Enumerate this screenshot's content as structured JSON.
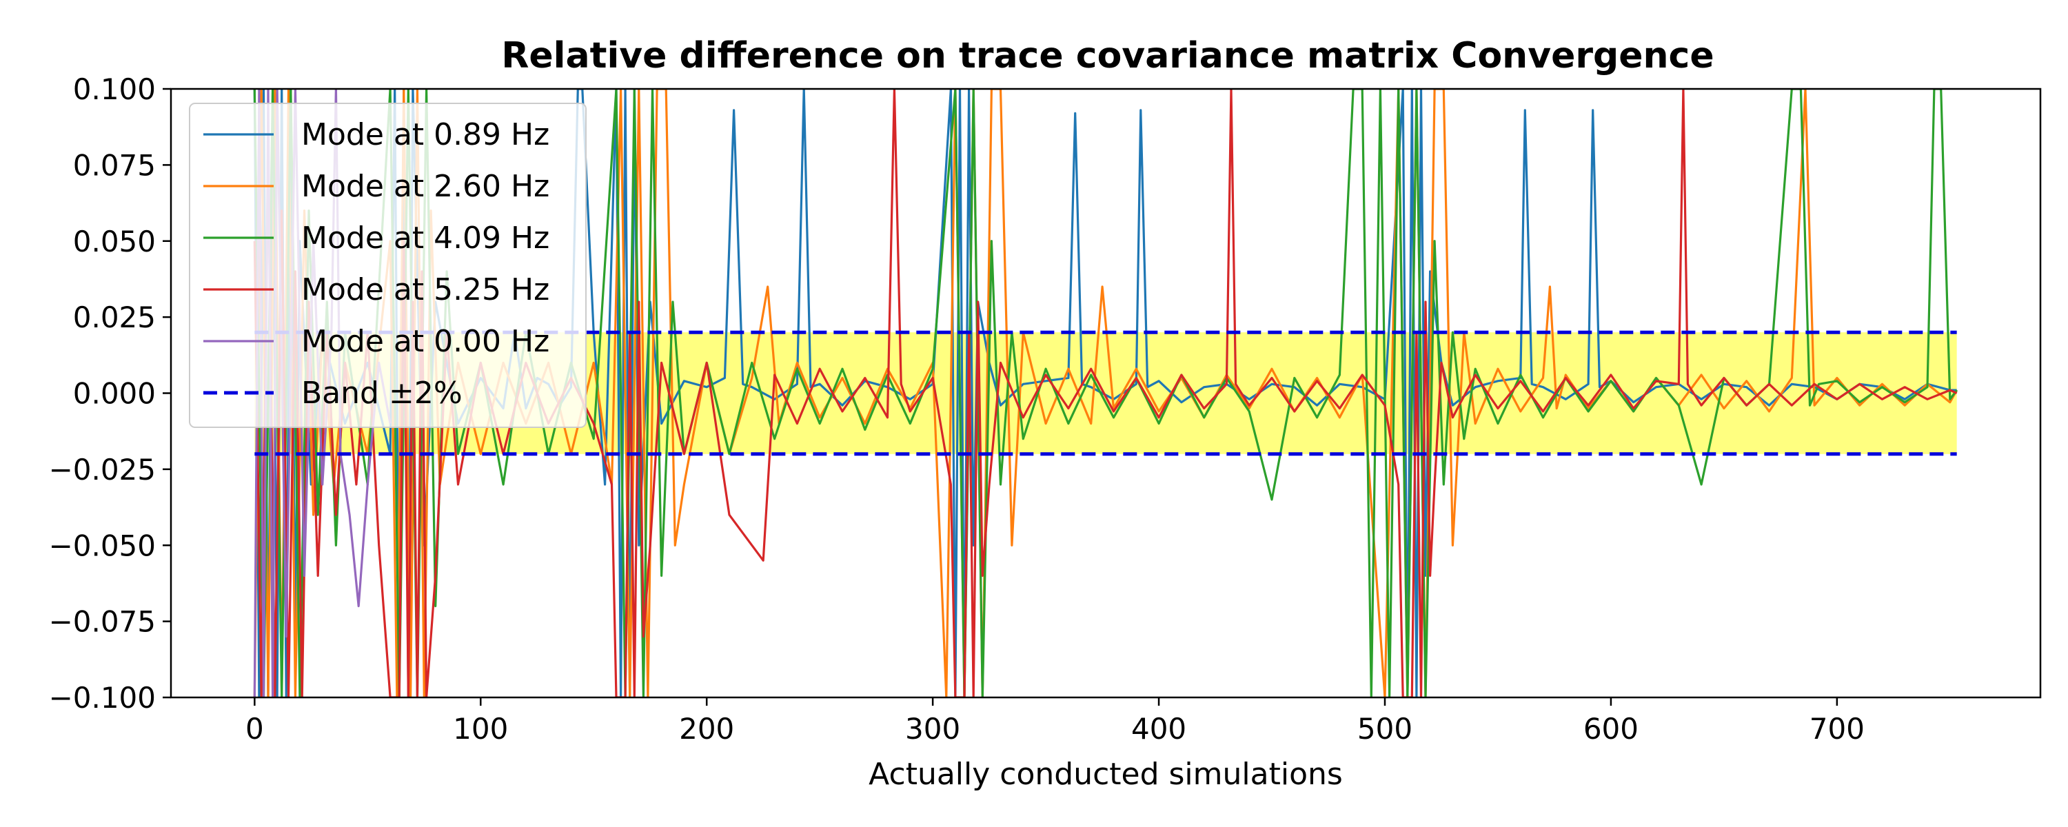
{
  "chart_data": {
    "type": "line",
    "title": "Relative difference on trace covariance matrix Convergence",
    "xlabel": "Actually conducted simulations",
    "ylabel": "",
    "xlim": [
      -37,
      790
    ],
    "ylim": [
      -0.1,
      0.1
    ],
    "xticks": [
      0,
      100,
      200,
      300,
      400,
      500,
      600,
      700
    ],
    "yticks": [
      -0.1,
      -0.075,
      -0.05,
      -0.025,
      0.0,
      0.025,
      0.05,
      0.075,
      0.1
    ],
    "xtick_labels": [
      "0",
      "100",
      "200",
      "300",
      "400",
      "500",
      "600",
      "700"
    ],
    "ytick_labels": [
      "−0.100",
      "−0.075",
      "−0.050",
      "−0.025",
      "0.000",
      "0.025",
      "0.050",
      "0.075",
      "0.100"
    ],
    "grid": false,
    "legend_position": "top-left",
    "band": {
      "label": "Band ±2%",
      "lower": -0.02,
      "upper": 0.02,
      "x_range": [
        0,
        753
      ],
      "fill_color": "#ffff80",
      "line_color": "#0000dd"
    },
    "series": [
      {
        "name": "Mode at 0.89 Hz",
        "color": "#1f77b4",
        "x": [
          0,
          2,
          4,
          6,
          8,
          10,
          12,
          14,
          16,
          18,
          20,
          25,
          30,
          40,
          50,
          60,
          62,
          64,
          66,
          68,
          70,
          75,
          80,
          90,
          100,
          110,
          115,
          120,
          125,
          130,
          135,
          140,
          143,
          145,
          150,
          155,
          160,
          162,
          164,
          166,
          168,
          170,
          175,
          180,
          190,
          200,
          208,
          212,
          216,
          220,
          230,
          240,
          243,
          246,
          250,
          260,
          270,
          280,
          290,
          300,
          308,
          310,
          312,
          314,
          316,
          318,
          320,
          325,
          330,
          340,
          350,
          360,
          363,
          366,
          370,
          380,
          390,
          392,
          395,
          400,
          410,
          420,
          430,
          440,
          450,
          460,
          470,
          480,
          490,
          500,
          508,
          510,
          512,
          514,
          516,
          518,
          520,
          525,
          530,
          540,
          550,
          560,
          562,
          565,
          570,
          580,
          590,
          592,
          595,
          600,
          610,
          620,
          630,
          640,
          650,
          660,
          670,
          680,
          690,
          700,
          710,
          720,
          730,
          740,
          750,
          753
        ],
        "y": [
          0.1,
          -0.1,
          0.1,
          -0.1,
          0.1,
          -0.1,
          0.1,
          -0.1,
          0.1,
          -0.08,
          0.05,
          -0.03,
          0.02,
          -0.01,
          0.01,
          -0.02,
          0.1,
          -0.1,
          0.1,
          -0.1,
          0.1,
          -0.05,
          0.03,
          -0.01,
          0.005,
          -0.005,
          0.02,
          -0.005,
          0.005,
          0.003,
          -0.004,
          0.002,
          0.1,
          0.1,
          0.02,
          -0.03,
          0.1,
          -0.1,
          0.1,
          -0.1,
          0.1,
          -0.05,
          0.03,
          -0.01,
          0.004,
          0.002,
          0.005,
          0.093,
          0.003,
          0.002,
          -0.002,
          0.003,
          0.1,
          0.002,
          0.003,
          -0.004,
          0.004,
          0.002,
          -0.002,
          0.003,
          0.1,
          -0.1,
          0.1,
          -0.1,
          0.1,
          -0.05,
          0.03,
          0.01,
          -0.004,
          0.003,
          0.004,
          0.005,
          0.092,
          0.003,
          0.002,
          -0.002,
          0.003,
          0.093,
          0.002,
          0.004,
          -0.003,
          0.002,
          0.003,
          -0.002,
          0.003,
          0.002,
          -0.004,
          0.003,
          0.002,
          -0.002,
          0.1,
          -0.1,
          0.1,
          -0.1,
          0.1,
          -0.06,
          0.04,
          0.01,
          -0.004,
          0.002,
          0.004,
          0.005,
          0.093,
          0.003,
          0.002,
          -0.002,
          0.003,
          0.093,
          0.002,
          0.004,
          -0.003,
          0.002,
          0.003,
          -0.002,
          0.003,
          0.002,
          -0.004,
          0.003,
          0.002,
          -0.002,
          0.003,
          0.002,
          -0.002,
          0.003,
          0.001,
          0.001
        ]
      },
      {
        "name": "Mode at 2.60 Hz",
        "color": "#ff7f0e",
        "x": [
          0,
          3,
          6,
          9,
          12,
          15,
          18,
          22,
          26,
          30,
          35,
          40,
          50,
          60,
          63,
          66,
          69,
          72,
          75,
          78,
          82,
          90,
          100,
          110,
          120,
          130,
          140,
          150,
          158,
          162,
          166,
          170,
          174,
          178,
          182,
          186,
          190,
          200,
          210,
          220,
          227,
          232,
          240,
          250,
          260,
          270,
          280,
          290,
          300,
          306,
          310,
          314,
          318,
          322,
          326,
          330,
          335,
          340,
          350,
          360,
          370,
          375,
          380,
          390,
          400,
          410,
          420,
          430,
          440,
          450,
          460,
          470,
          480,
          490,
          500,
          506,
          510,
          514,
          518,
          522,
          526,
          530,
          535,
          540,
          550,
          560,
          570,
          573,
          576,
          580,
          590,
          600,
          610,
          620,
          630,
          640,
          650,
          660,
          670,
          680,
          686,
          690,
          700,
          710,
          720,
          730,
          740,
          750,
          753
        ],
        "y": [
          -0.1,
          0.1,
          -0.1,
          0.1,
          -0.1,
          0.1,
          -0.1,
          0.06,
          -0.04,
          0.02,
          -0.03,
          0.01,
          -0.02,
          0.05,
          -0.1,
          0.1,
          -0.1,
          0.1,
          -0.1,
          0.06,
          -0.03,
          0.01,
          -0.02,
          0.01,
          -0.01,
          0.01,
          -0.02,
          0.01,
          -0.03,
          0.1,
          -0.1,
          0.1,
          -0.1,
          0.1,
          0.1,
          -0.05,
          -0.03,
          0.01,
          -0.02,
          0.005,
          0.035,
          -0.01,
          0.01,
          -0.008,
          0.005,
          -0.01,
          0.008,
          -0.005,
          0.01,
          -0.1,
          0.1,
          -0.1,
          0.1,
          -0.1,
          0.1,
          0.1,
          -0.05,
          0.02,
          -0.01,
          0.008,
          -0.01,
          0.035,
          -0.005,
          0.008,
          -0.006,
          0.005,
          -0.008,
          0.006,
          -0.005,
          0.008,
          -0.006,
          0.005,
          -0.008,
          0.006,
          -0.1,
          0.1,
          -0.1,
          0.1,
          -0.1,
          0.1,
          0.1,
          -0.05,
          0.02,
          -0.01,
          0.008,
          -0.006,
          0.005,
          0.035,
          -0.005,
          0.006,
          -0.005,
          0.004,
          -0.006,
          0.005,
          -0.004,
          0.006,
          -0.005,
          0.004,
          -0.006,
          0.005,
          0.1,
          -0.004,
          0.005,
          -0.004,
          0.003,
          -0.004,
          0.003,
          -0.003,
          0.001
        ]
      },
      {
        "name": "Mode at 4.09 Hz",
        "color": "#2ca02c",
        "x": [
          0,
          4,
          8,
          12,
          16,
          20,
          24,
          28,
          32,
          36,
          40,
          50,
          60,
          64,
          68,
          72,
          76,
          80,
          85,
          90,
          100,
          110,
          120,
          130,
          140,
          150,
          160,
          164,
          168,
          172,
          176,
          180,
          185,
          190,
          200,
          210,
          220,
          230,
          240,
          250,
          260,
          270,
          280,
          290,
          300,
          310,
          314,
          318,
          322,
          326,
          330,
          335,
          340,
          350,
          360,
          370,
          380,
          390,
          400,
          410,
          420,
          430,
          440,
          450,
          460,
          470,
          480,
          486,
          490,
          494,
          498,
          502,
          506,
          510,
          514,
          518,
          522,
          526,
          530,
          535,
          540,
          550,
          560,
          570,
          580,
          590,
          600,
          610,
          620,
          630,
          640,
          650,
          660,
          670,
          680,
          684,
          688,
          692,
          700,
          710,
          720,
          730,
          740,
          743,
          746,
          750,
          753
        ],
        "y": [
          0.1,
          -0.1,
          0.1,
          -0.1,
          0.1,
          -0.1,
          0.06,
          -0.04,
          0.03,
          -0.05,
          0.02,
          -0.03,
          0.1,
          -0.1,
          0.1,
          -0.1,
          0.1,
          -0.07,
          0.04,
          -0.02,
          0.01,
          -0.03,
          0.02,
          -0.02,
          0.01,
          -0.015,
          0.1,
          -0.1,
          0.1,
          -0.1,
          0.1,
          -0.06,
          0.03,
          -0.02,
          0.01,
          -0.02,
          0.01,
          -0.015,
          0.008,
          -0.01,
          0.008,
          -0.012,
          0.006,
          -0.01,
          0.008,
          0.1,
          -0.1,
          0.1,
          -0.1,
          0.05,
          -0.03,
          0.02,
          -0.015,
          0.008,
          -0.01,
          0.006,
          -0.008,
          0.005,
          -0.01,
          0.006,
          -0.008,
          0.005,
          -0.006,
          -0.035,
          0.005,
          -0.008,
          0.006,
          0.1,
          0.1,
          -0.1,
          0.1,
          -0.1,
          0.1,
          -0.1,
          0.1,
          -0.1,
          0.05,
          -0.03,
          0.02,
          -0.015,
          0.008,
          -0.01,
          0.006,
          -0.008,
          0.005,
          -0.006,
          0.004,
          -0.006,
          0.005,
          -0.004,
          -0.03,
          0.005,
          -0.004,
          0.003,
          0.1,
          0.1,
          -0.004,
          0.003,
          0.004,
          -0.003,
          0.002,
          -0.003,
          0.002,
          0.1,
          0.1,
          -0.002,
          0.001
        ]
      },
      {
        "name": "Mode at 5.25 Hz",
        "color": "#d62728",
        "x": [
          0,
          3,
          6,
          9,
          12,
          15,
          18,
          21,
          24,
          28,
          32,
          36,
          40,
          45,
          50,
          55,
          60,
          62,
          64,
          66,
          68,
          70,
          72,
          74,
          76,
          80,
          85,
          90,
          100,
          110,
          120,
          130,
          140,
          150,
          158,
          160,
          162,
          164,
          166,
          168,
          170,
          172,
          175,
          180,
          190,
          200,
          210,
          225,
          230,
          240,
          250,
          260,
          270,
          280,
          283,
          286,
          290,
          300,
          308,
          310,
          312,
          314,
          316,
          318,
          320,
          322,
          325,
          330,
          340,
          350,
          360,
          370,
          380,
          390,
          400,
          410,
          420,
          430,
          432,
          434,
          440,
          450,
          460,
          470,
          480,
          490,
          500,
          506,
          508,
          510,
          512,
          514,
          516,
          518,
          520,
          522,
          525,
          530,
          540,
          550,
          560,
          570,
          580,
          590,
          600,
          610,
          620,
          630,
          632,
          634,
          640,
          650,
          660,
          670,
          680,
          690,
          700,
          710,
          720,
          730,
          740,
          750,
          753
        ],
        "y": [
          0.05,
          -0.1,
          0.08,
          -0.1,
          0.06,
          -0.1,
          0.04,
          -0.1,
          0.03,
          -0.06,
          0.02,
          -0.04,
          0.01,
          -0.03,
          0.02,
          -0.05,
          -0.1,
          -0.1,
          -0.1,
          0.05,
          -0.1,
          0.03,
          -0.1,
          0.04,
          -0.1,
          -0.06,
          0.02,
          -0.03,
          0.01,
          -0.02,
          0.01,
          -0.01,
          0.005,
          -0.01,
          -0.03,
          -0.1,
          -0.1,
          -0.1,
          0.02,
          -0.1,
          0.03,
          -0.08,
          -0.05,
          0.01,
          -0.02,
          0.01,
          -0.04,
          -0.055,
          0.006,
          -0.01,
          0.008,
          -0.006,
          0.005,
          -0.008,
          0.1,
          0.003,
          -0.006,
          0.005,
          -0.03,
          -0.1,
          -0.1,
          -0.1,
          0.02,
          -0.1,
          0.03,
          -0.06,
          -0.03,
          0.01,
          -0.008,
          0.006,
          -0.005,
          0.008,
          -0.006,
          0.005,
          -0.008,
          0.006,
          -0.005,
          0.003,
          0.1,
          0.003,
          -0.004,
          0.005,
          -0.006,
          0.004,
          -0.005,
          0.006,
          -0.004,
          -0.03,
          -0.1,
          -0.1,
          -0.1,
          0.02,
          -0.1,
          0.03,
          -0.06,
          -0.03,
          0.01,
          -0.008,
          0.006,
          -0.005,
          0.004,
          -0.006,
          0.005,
          -0.004,
          0.006,
          -0.005,
          0.004,
          0.003,
          0.1,
          0.003,
          -0.004,
          0.005,
          -0.004,
          0.003,
          -0.004,
          0.003,
          -0.002,
          0.003,
          -0.002,
          0.002,
          -0.002,
          0.001,
          0.0
        ]
      },
      {
        "name": "Mode at 0.00 Hz",
        "color": "#9467bd",
        "x": [
          0,
          2,
          4,
          6,
          8,
          10,
          14,
          18,
          22,
          26,
          30,
          34,
          36,
          38,
          42,
          46,
          50,
          55,
          60
        ],
        "y": [
          -0.1,
          0.1,
          -0.1,
          0.1,
          -0.1,
          0.1,
          -0.08,
          0.1,
          -0.06,
          0.05,
          -0.03,
          0.02,
          0.1,
          -0.02,
          -0.04,
          -0.07,
          -0.03,
          0.01,
          -0.01
        ]
      }
    ]
  }
}
